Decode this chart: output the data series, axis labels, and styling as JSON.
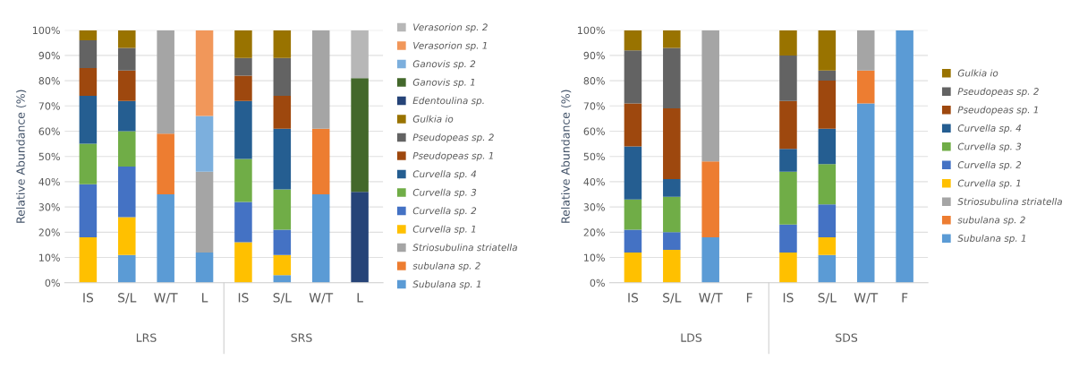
{
  "chart_data": [
    {
      "type": "bar",
      "stacked": true,
      "ylabel": "Relative Abundance (%)",
      "categories": [
        "IS",
        "S/L",
        "W/T",
        "L",
        "IS",
        "S/L",
        "W/T",
        "L"
      ],
      "annotations": [
        "LRS",
        "SRS"
      ],
      "ylim": [
        0,
        100
      ],
      "yticks": [
        {
          "value": 0,
          "label": "0%"
        },
        {
          "value": 10,
          "label": "10%"
        },
        {
          "value": 20,
          "label": "20%"
        },
        {
          "value": 30,
          "label": "30%"
        },
        {
          "value": 40,
          "label": "40%"
        },
        {
          "value": 50,
          "label": "50%"
        },
        {
          "value": 60,
          "label": "60%"
        },
        {
          "value": 70,
          "label": "70%"
        },
        {
          "value": 80,
          "label": "80%"
        },
        {
          "value": 90,
          "label": "90%"
        },
        {
          "value": 100,
          "label": "100%"
        }
      ],
      "grid": "y",
      "legend": "right",
      "series": [
        {
          "name": "Subulana sp. 1",
          "color": "#5b9bd5",
          "values": [
            null,
            11,
            35,
            12,
            null,
            3,
            35,
            null
          ]
        },
        {
          "name": "subulana sp. 2",
          "color": "#ed7d31",
          "values": [
            null,
            null,
            24,
            null,
            null,
            null,
            26,
            null
          ]
        },
        {
          "name": "Striosubulina striatella",
          "color": "#a5a5a5",
          "values": [
            null,
            null,
            41,
            32,
            null,
            null,
            39,
            null
          ]
        },
        {
          "name": "Curvella sp. 1",
          "color": "#ffc000",
          "values": [
            18,
            15,
            null,
            null,
            16,
            8,
            null,
            null
          ]
        },
        {
          "name": "Curvella sp. 2",
          "color": "#4472c4",
          "values": [
            21,
            20,
            null,
            null,
            16,
            10,
            null,
            null
          ]
        },
        {
          "name": "Curvella sp. 3",
          "color": "#70ad47",
          "values": [
            16,
            14,
            null,
            null,
            17,
            16,
            null,
            null
          ]
        },
        {
          "name": "Curvella sp. 4",
          "color": "#255e91",
          "values": [
            19,
            12,
            null,
            null,
            23,
            24,
            null,
            null
          ]
        },
        {
          "name": "Pseudopeas sp. 1",
          "color": "#9e480e",
          "values": [
            11,
            12,
            null,
            null,
            10,
            13,
            null,
            null
          ]
        },
        {
          "name": "Pseudopeas sp. 2",
          "color": "#636363",
          "values": [
            11,
            9,
            null,
            null,
            7,
            15,
            null,
            null
          ]
        },
        {
          "name": "Gulkia io",
          "color": "#997300",
          "values": [
            4,
            7,
            null,
            null,
            11,
            11,
            null,
            null
          ]
        },
        {
          "name": "Edentoulina sp.",
          "color": "#264478",
          "values": [
            null,
            null,
            null,
            null,
            null,
            null,
            null,
            36
          ]
        },
        {
          "name": "Ganovis sp. 1",
          "color": "#43682b",
          "values": [
            null,
            null,
            null,
            null,
            null,
            null,
            null,
            45
          ]
        },
        {
          "name": "Ganovis sp. 2",
          "color": "#7cafdd",
          "values": [
            null,
            null,
            null,
            22,
            null,
            null,
            null,
            null
          ]
        },
        {
          "name": "Verasorion sp. 1",
          "color": "#f1975a",
          "values": [
            null,
            null,
            null,
            34,
            null,
            null,
            null,
            null
          ]
        },
        {
          "name": "Verasorion sp. 2",
          "color": "#b7b7b7",
          "values": [
            null,
            null,
            null,
            null,
            null,
            null,
            null,
            19
          ]
        }
      ]
    },
    {
      "type": "bar",
      "stacked": true,
      "ylabel": "Relative Abundance (%)",
      "categories": [
        "IS",
        "S/L",
        "W/T",
        "F",
        "IS",
        "S/L",
        "W/T",
        "F"
      ],
      "annotations": [
        "LDS",
        "SDS"
      ],
      "ylim": [
        0,
        100
      ],
      "yticks": [
        {
          "value": 0,
          "label": "0%"
        },
        {
          "value": 10,
          "label": "10%"
        },
        {
          "value": 20,
          "label": "20%"
        },
        {
          "value": 30,
          "label": "30%"
        },
        {
          "value": 40,
          "label": "40%"
        },
        {
          "value": 50,
          "label": "50%"
        },
        {
          "value": 60,
          "label": "60%"
        },
        {
          "value": 70,
          "label": "70%"
        },
        {
          "value": 80,
          "label": "80%"
        },
        {
          "value": 90,
          "label": "90%"
        },
        {
          "value": 100,
          "label": "100%"
        }
      ],
      "grid": "y",
      "legend": "right",
      "series": [
        {
          "name": "Subulana sp. 1",
          "color": "#5b9bd5",
          "values": [
            null,
            null,
            18,
            null,
            null,
            11,
            71,
            100
          ]
        },
        {
          "name": "subulana sp. 2",
          "color": "#ed7d31",
          "values": [
            null,
            null,
            30,
            null,
            null,
            null,
            13,
            null
          ]
        },
        {
          "name": "Striosubulina striatella",
          "color": "#a5a5a5",
          "values": [
            null,
            null,
            52,
            null,
            null,
            null,
            16,
            null
          ]
        },
        {
          "name": "Curvella sp. 1",
          "color": "#ffc000",
          "values": [
            12,
            13,
            null,
            null,
            12,
            7,
            null,
            null
          ]
        },
        {
          "name": "Curvella sp. 2",
          "color": "#4472c4",
          "values": [
            9,
            7,
            null,
            null,
            11,
            13,
            null,
            null
          ]
        },
        {
          "name": "Curvella sp. 3",
          "color": "#70ad47",
          "values": [
            12,
            14,
            null,
            null,
            21,
            16,
            null,
            null
          ]
        },
        {
          "name": "Curvella sp. 4",
          "color": "#255e91",
          "values": [
            21,
            7,
            null,
            null,
            9,
            14,
            null,
            null
          ]
        },
        {
          "name": "Pseudopeas sp. 1",
          "color": "#9e480e",
          "values": [
            17,
            28,
            null,
            null,
            19,
            19,
            null,
            null
          ]
        },
        {
          "name": "Pseudopeas sp. 2",
          "color": "#636363",
          "values": [
            21,
            24,
            null,
            null,
            18,
            4,
            null,
            null
          ]
        },
        {
          "name": "Gulkia io",
          "color": "#997300",
          "values": [
            8,
            7,
            null,
            null,
            10,
            16,
            null,
            null
          ]
        }
      ]
    }
  ]
}
